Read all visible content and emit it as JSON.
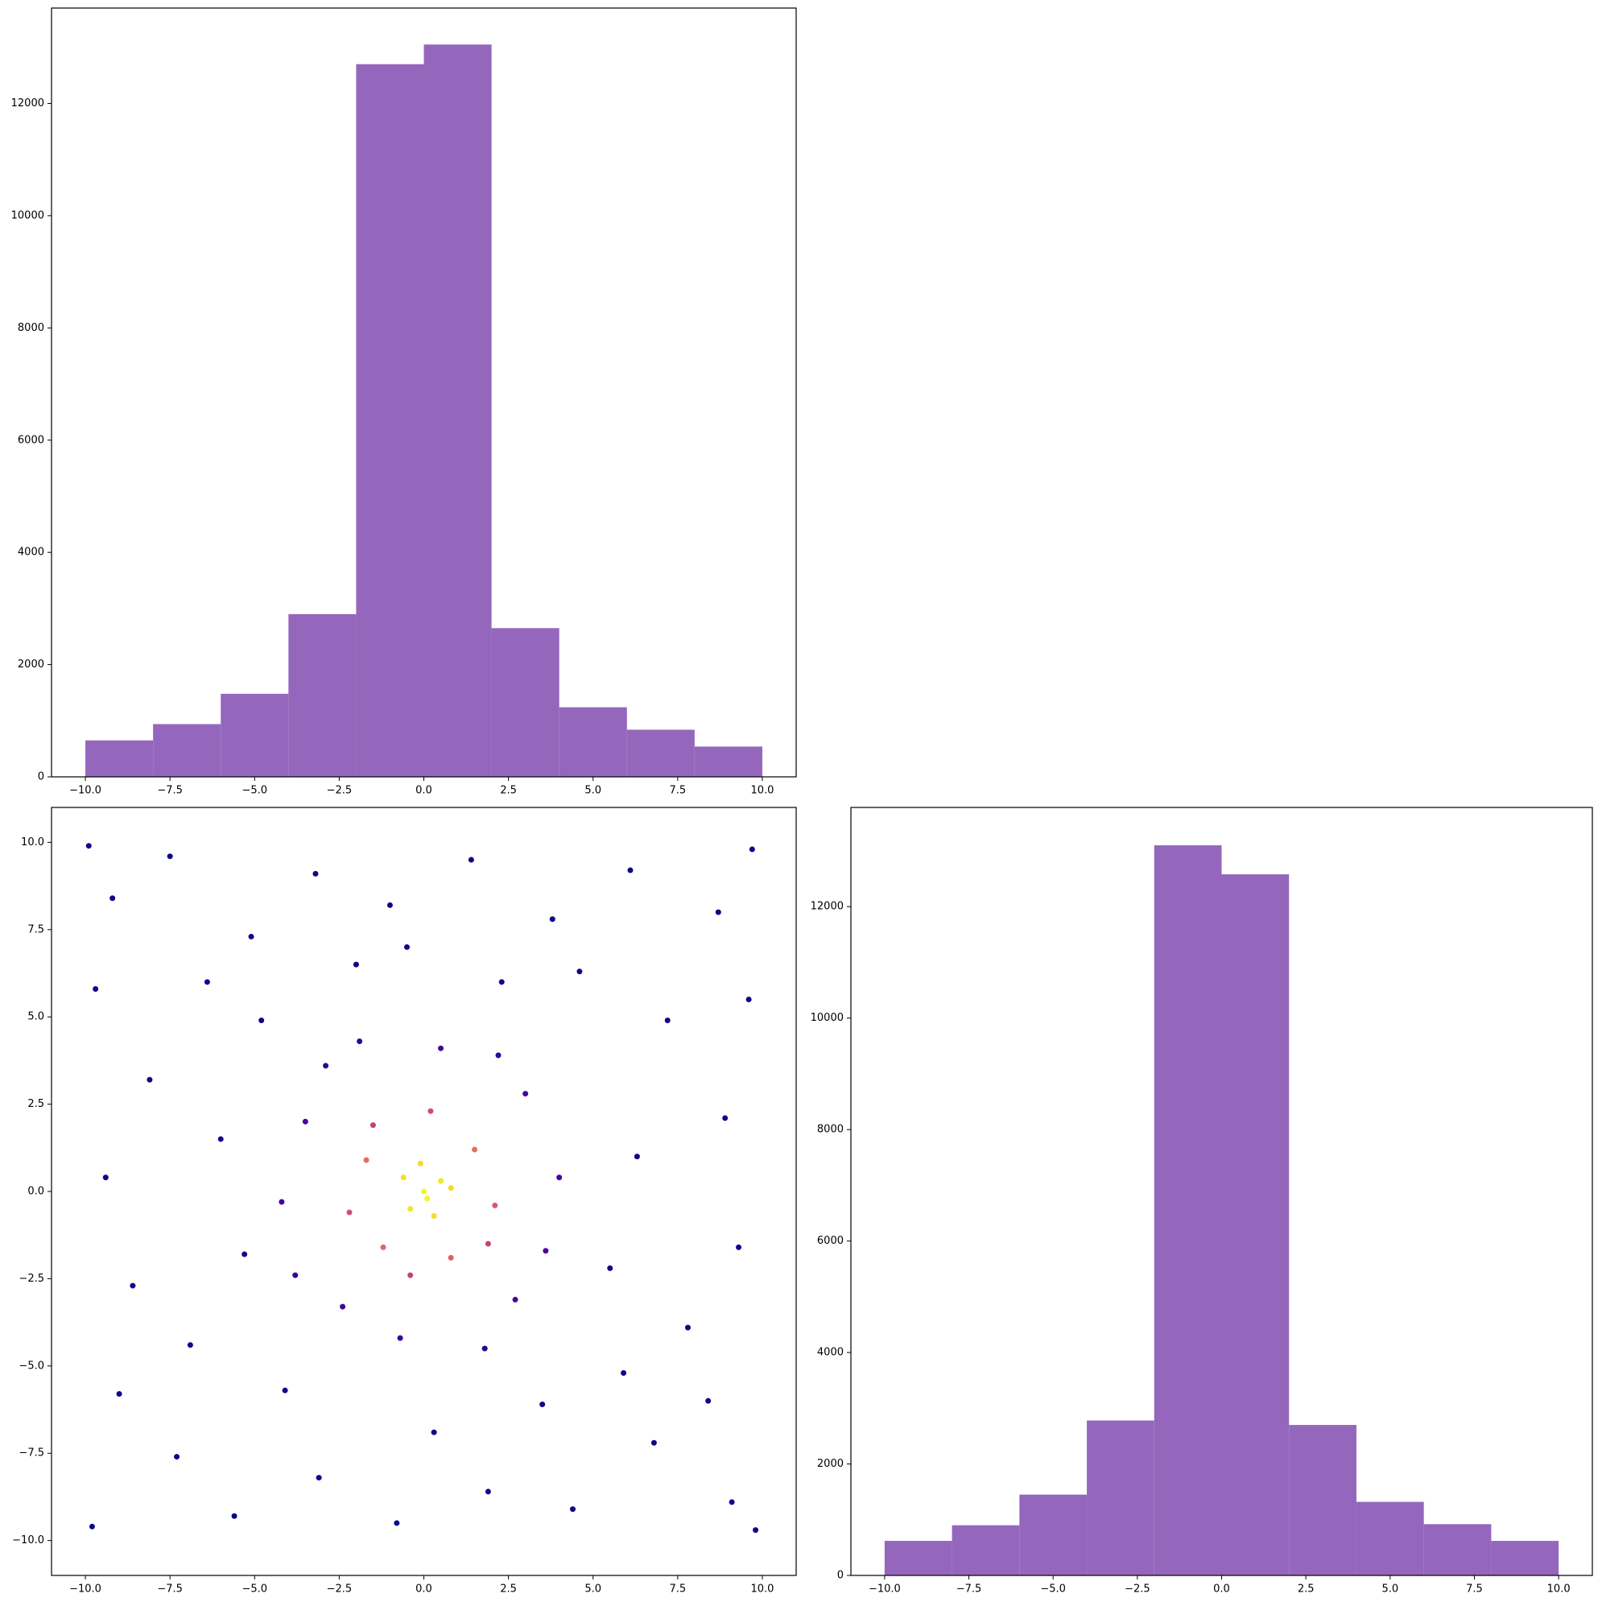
{
  "chart_data": [
    {
      "type": "histogram",
      "color": "#9467bd",
      "bins": [
        -10,
        -8,
        -6,
        -4,
        -2,
        0,
        2,
        4,
        6,
        8,
        10
      ],
      "counts": [
        650,
        940,
        1480,
        2900,
        12700,
        13050,
        2650,
        1240,
        840,
        540
      ],
      "xlim": [
        -11,
        11
      ],
      "ylim": [
        0,
        13700
      ],
      "xticks": [
        {
          "value": -10,
          "label": "−10.0"
        },
        {
          "value": -7.5,
          "label": "−7.5"
        },
        {
          "value": -5,
          "label": "−5.0"
        },
        {
          "value": -2.5,
          "label": "−2.5"
        },
        {
          "value": 0,
          "label": "0.0"
        },
        {
          "value": 2.5,
          "label": "2.5"
        },
        {
          "value": 5,
          "label": "5.0"
        },
        {
          "value": 7.5,
          "label": "7.5"
        },
        {
          "value": 10,
          "label": "10.0"
        }
      ],
      "yticks": [
        0,
        2000,
        4000,
        6000,
        8000,
        10000,
        12000
      ]
    },
    {
      "type": "scatter",
      "colormap": "plasma",
      "x": [
        -9.2,
        -7.5,
        -5.1,
        -3.2,
        -1.0,
        1.4,
        3.8,
        6.1,
        8.7,
        9.6,
        -9.7,
        -8.1,
        -6.4,
        7.2,
        8.9,
        -9.4,
        -8.6,
        9.3,
        7.8,
        -9.0,
        -7.3,
        -5.6,
        -3.1,
        -0.8,
        1.9,
        4.4,
        6.8,
        9.1,
        8.4,
        -6.9,
        5.9,
        -4.8,
        4.6,
        -2.0,
        2.3,
        -6.0,
        6.3,
        -5.3,
        5.5,
        -4.1,
        3.5,
        -9.8,
        9.7,
        -9.9,
        9.8,
        0.3,
        -0.5,
        -3.5,
        3.0,
        -2.4,
        2.7,
        0.5,
        -0.7,
        4.0,
        -4.2,
        -2.9,
        3.6,
        1.8,
        -3.8,
        2.2,
        -1.9,
        1.5,
        -1.7,
        0.8,
        -1.2,
        2.1,
        -2.2,
        0.2,
        -0.4,
        1.9,
        -1.5,
        0.5,
        -0.6,
        0.3,
        -0.4,
        0.8,
        -0.1,
        0.1,
        0.0
      ],
      "y": [
        8.4,
        9.6,
        7.3,
        9.1,
        8.2,
        9.5,
        7.8,
        9.2,
        8.0,
        5.5,
        5.8,
        3.2,
        6.0,
        4.9,
        2.1,
        0.4,
        -2.7,
        -1.6,
        -3.9,
        -5.8,
        -7.6,
        -9.3,
        -8.2,
        -9.5,
        -8.6,
        -9.1,
        -7.2,
        -8.9,
        -6.0,
        -4.4,
        -5.2,
        4.9,
        6.3,
        6.5,
        6.0,
        1.5,
        1.0,
        -1.8,
        -2.2,
        -5.7,
        -6.1,
        -9.6,
        9.8,
        9.9,
        -9.7,
        -6.9,
        7.0,
        2.0,
        2.8,
        -3.3,
        -3.1,
        4.1,
        -4.2,
        0.4,
        -0.3,
        3.6,
        -1.7,
        -4.5,
        -2.4,
        3.9,
        4.3,
        1.2,
        0.9,
        -1.9,
        -1.6,
        -0.4,
        -0.6,
        2.3,
        -2.4,
        -1.5,
        1.9,
        0.3,
        0.4,
        -0.7,
        -0.5,
        0.1,
        0.8,
        -0.2,
        0.0
      ],
      "xlim": [
        -11,
        11
      ],
      "ylim": [
        -11,
        11
      ],
      "xticks": [
        {
          "value": -10,
          "label": "−10.0"
        },
        {
          "value": -7.5,
          "label": "−7.5"
        },
        {
          "value": -5,
          "label": "−5.0"
        },
        {
          "value": -2.5,
          "label": "−2.5"
        },
        {
          "value": 0,
          "label": "0.0"
        },
        {
          "value": 2.5,
          "label": "2.5"
        },
        {
          "value": 5,
          "label": "5.0"
        },
        {
          "value": 7.5,
          "label": "7.5"
        },
        {
          "value": 10,
          "label": "10.0"
        }
      ],
      "yticks": [
        {
          "value": -10,
          "label": "−10.0"
        },
        {
          "value": -7.5,
          "label": "−7.5"
        },
        {
          "value": -5,
          "label": "−5.0"
        },
        {
          "value": -2.5,
          "label": "−2.5"
        },
        {
          "value": 0,
          "label": "0.0"
        },
        {
          "value": 2.5,
          "label": "2.5"
        },
        {
          "value": 5,
          "label": "5.0"
        },
        {
          "value": 7.5,
          "label": "7.5"
        },
        {
          "value": 10,
          "label": "10.0"
        }
      ]
    },
    {
      "type": "histogram",
      "color": "#9467bd",
      "bins": [
        -10,
        -8,
        -6,
        -4,
        -2,
        0,
        2,
        4,
        6,
        8,
        10
      ],
      "counts": [
        620,
        900,
        1450,
        2780,
        13100,
        12580,
        2700,
        1320,
        920,
        620
      ],
      "xlim": [
        -11,
        11
      ],
      "ylim": [
        0,
        13780
      ],
      "xticks": [
        {
          "value": -10,
          "label": "−10.0"
        },
        {
          "value": -7.5,
          "label": "−7.5"
        },
        {
          "value": -5,
          "label": "−5.0"
        },
        {
          "value": -2.5,
          "label": "−2.5"
        },
        {
          "value": 0,
          "label": "0.0"
        },
        {
          "value": 2.5,
          "label": "2.5"
        },
        {
          "value": 5,
          "label": "5.0"
        },
        {
          "value": 7.5,
          "label": "7.5"
        },
        {
          "value": 10,
          "label": "10.0"
        }
      ],
      "yticks": [
        0,
        2000,
        4000,
        6000,
        8000,
        10000,
        12000
      ]
    }
  ]
}
